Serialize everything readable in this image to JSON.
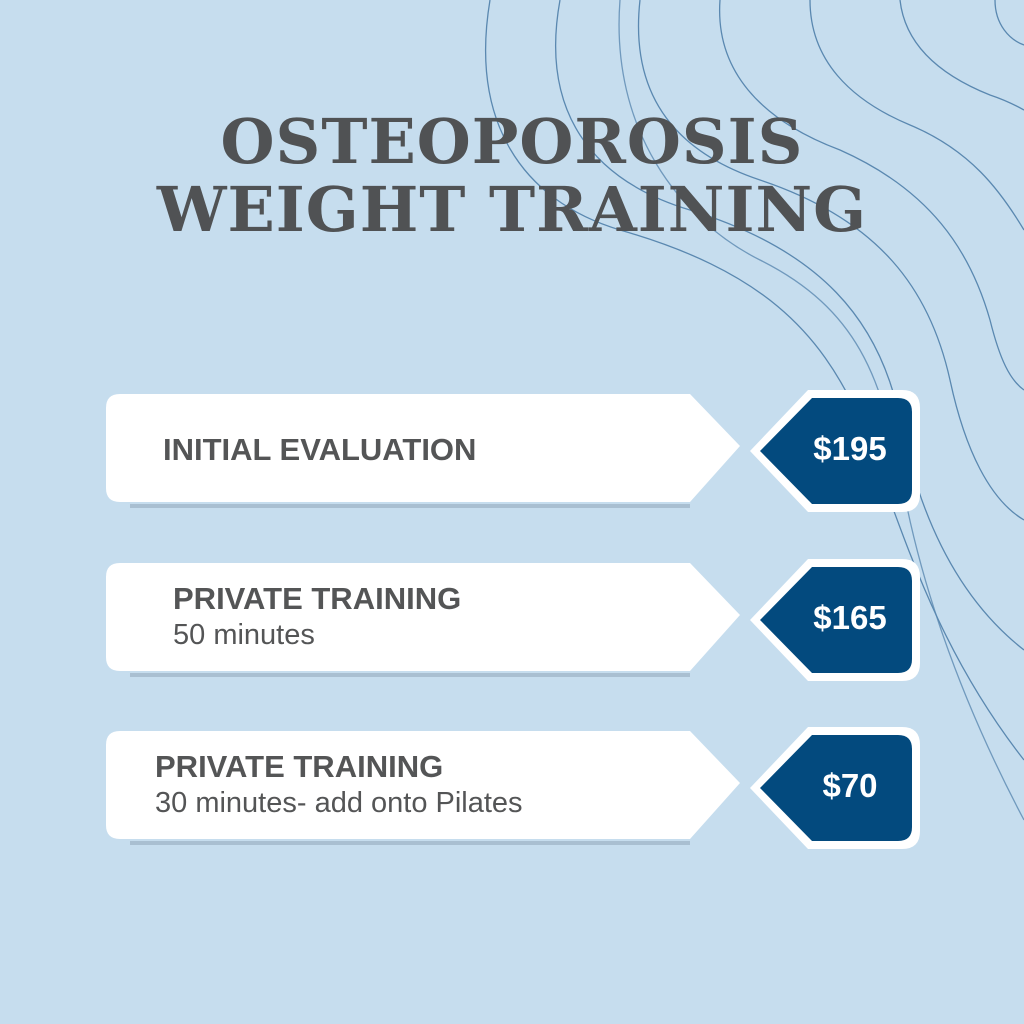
{
  "title": {
    "line1": "OSTEOPOROSIS",
    "line2": "WEIGHT TRAINING"
  },
  "colors": {
    "background": "#c6ddee",
    "card": "#ffffff",
    "tag": "#034a7e",
    "text": "#545556",
    "lines": "#5a88b0"
  },
  "items": [
    {
      "name": "INITIAL EVALUATION",
      "detail": "",
      "price": "$195"
    },
    {
      "name": "PRIVATE TRAINING",
      "detail": "50 minutes",
      "price": "$165"
    },
    {
      "name": "PRIVATE TRAINING",
      "detail": "30 minutes- add onto Pilates",
      "price": "$70"
    }
  ]
}
